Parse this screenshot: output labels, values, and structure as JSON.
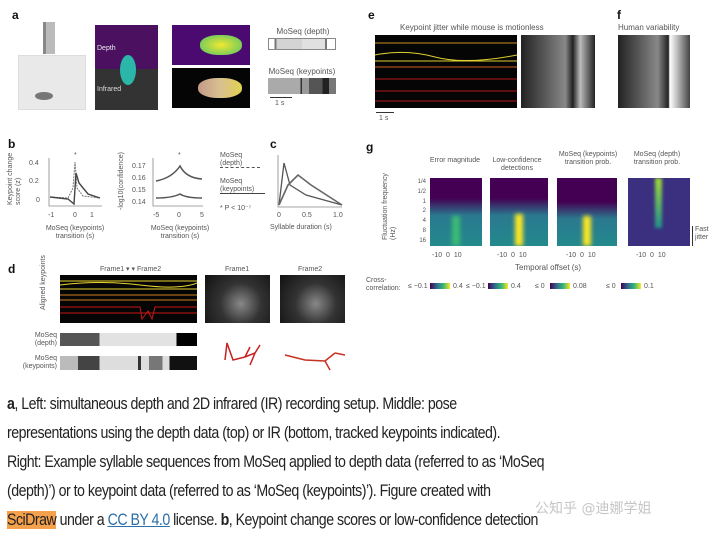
{
  "panels": {
    "a": "a",
    "b": "b",
    "c": "c",
    "d": "d",
    "e": "e",
    "f": "f",
    "g": "g"
  },
  "panel_a": {
    "depth_label": "Depth",
    "infrared_label": "Infrared",
    "moseq_depth": "MoSeq (depth)",
    "moseq_keypoints": "MoSeq (keypoints)",
    "scale": "1 s"
  },
  "panel_b": {
    "plot1": {
      "ylabel": "Keypoint change score (z)",
      "yticks": [
        "0.4",
        "0.2",
        "0"
      ],
      "xticks": [
        "-1",
        "0",
        "1"
      ],
      "xlabel": "MoSeq (keypoints) transition (s)",
      "star": "*"
    },
    "plot2": {
      "ylabel": "-log10(confidence)",
      "yticks": [
        "0.17",
        "0.16",
        "0.15",
        "0.14"
      ],
      "xticks": [
        "-5",
        "0",
        "5"
      ],
      "xlabel": "MoSeq (keypoints) transition (s)",
      "star": "*"
    },
    "legend": {
      "depth": "MoSeq (depth)",
      "keypoints": "MoSeq (keypoints)",
      "pval": "* P < 10⁻⁷"
    }
  },
  "panel_c": {
    "xticks": [
      "0",
      "0.5",
      "1.0"
    ],
    "xlabel": "Syllable duration (s)"
  },
  "panel_d": {
    "frames_header": "Frame1 ▾  ▾ Frame2",
    "frame1": "Frame1",
    "frame2": "Frame2",
    "ylabel": "Aligned keypoints",
    "moseq_depth": "MoSeq (depth)",
    "moseq_keypoints": "MoSeq (keypoints)"
  },
  "panel_e": {
    "title": "Keypoint jitter while mouse is motionless",
    "scale": "1 s"
  },
  "panel_f": {
    "title": "Human variability"
  },
  "panel_g": {
    "titles": [
      "Error magnitude",
      "Low-confidence detections",
      "MoSeq (keypoints) transition prob.",
      "MoSeq (depth) transition prob."
    ],
    "yticks": [
      "1/4",
      "1/2",
      "1",
      "2",
      "4",
      "8",
      "16"
    ],
    "ylabel": "Fluctuation frequency (Hz)",
    "xticks": [
      "-10",
      "0",
      "10"
    ],
    "xlabel": "Temporal offset (s)",
    "fast_jitter": "Fast jitter",
    "cc_label": "Cross-correlation:",
    "colorbars": [
      [
        "≤ −0.1",
        "0.4"
      ],
      [
        "≤ −0.1",
        "0.4"
      ],
      [
        "≤ 0",
        "0.08"
      ],
      [
        "≤ 0",
        "0.1"
      ]
    ]
  },
  "caption": {
    "l1b": "a",
    "l1": ", Left: simultaneous depth and 2D infrared (IR) recording setup. Middle: pose",
    "l2": "representations using the depth data (top) or IR (bottom, tracked keypoints indicated).",
    "l3": "Right: Example syllable sequences from MoSeq applied to depth data (referred to as ‘MoSeq",
    "l4": "(depth)’) or to keypoint data (referred to as ‘MoSeq (keypoints)’). Figure created with",
    "l5_hl": "SciDraw",
    "l5a": " under a ",
    "l5_link": "CC BY 4.0",
    "l5b": " license. ",
    "l5_bold": "b",
    "l5c": ", Keypoint change scores or low-confidence detection"
  },
  "watermark": "公知乎 @迪娜学姐",
  "colors": {
    "highlight": "#f5a04a",
    "link": "#2a6fa8",
    "viridis_low": "#440154",
    "viridis_high": "#fde725"
  }
}
